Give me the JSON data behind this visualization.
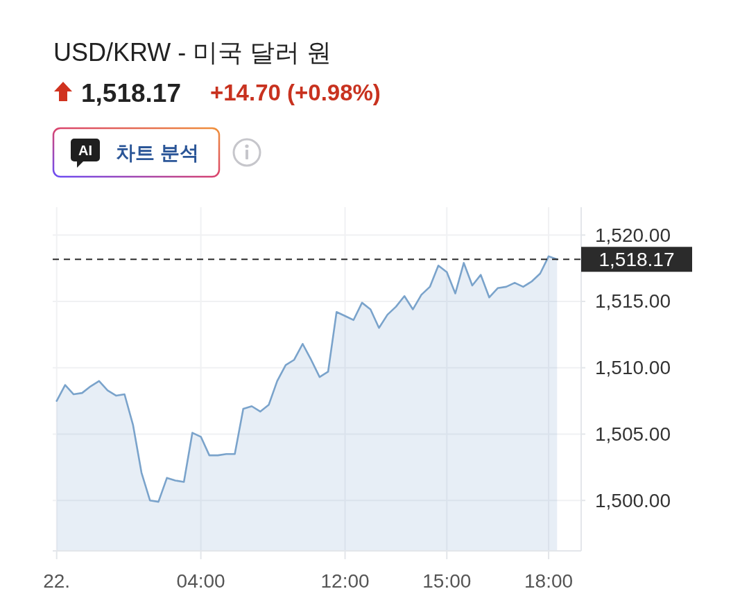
{
  "chart_data": {
    "type": "area",
    "title": "USD/KRW - 미국 달러 원",
    "subtitle": "1,518.17",
    "annotations": [
      "+14.70 (+0.98%)",
      "AI",
      "차트 분석"
    ],
    "categories": [
      "22.",
      null,
      null,
      null,
      null,
      null,
      null,
      null,
      null,
      null,
      null,
      null,
      null,
      null,
      null,
      null,
      null,
      "04:00",
      null,
      null,
      null,
      null,
      null,
      null,
      null,
      null,
      null,
      null,
      null,
      null,
      null,
      null,
      null,
      null,
      "12:00",
      null,
      null,
      null,
      null,
      null,
      null,
      null,
      null,
      null,
      null,
      null,
      "15:00",
      null,
      null,
      null,
      null,
      null,
      null,
      null,
      null,
      null,
      null,
      null,
      "18:00",
      null
    ],
    "series": [
      {
        "color": "#7aa3cb",
        "values": [
          1507.5,
          1508.7,
          1508.0,
          1508.1,
          1508.6,
          1509.0,
          1508.3,
          1507.9,
          1508.0,
          1505.7,
          1502.1,
          1500.0,
          1499.9,
          1501.7,
          1501.5,
          1501.4,
          1505.1,
          1504.8,
          1503.4,
          1503.4,
          1503.5,
          1503.5,
          1506.9,
          1507.1,
          1506.7,
          1507.2,
          1509.0,
          1510.2,
          1510.6,
          1511.8,
          1510.6,
          1509.3,
          1509.7,
          1514.2,
          1513.9,
          1513.6,
          1514.9,
          1514.4,
          1513.0,
          1514.0,
          1514.6,
          1515.4,
          1514.4,
          1515.5,
          1516.1,
          1517.7,
          1517.2,
          1515.6,
          1517.9,
          1516.2,
          1517.0,
          1515.3,
          1516.0,
          1516.1,
          1516.4,
          1516.1,
          1516.5,
          1517.1,
          1518.4,
          1518.17
        ]
      }
    ],
    "ylim": [
      1496.2,
      1522.1
    ],
    "yticks": [
      {
        "value": 1500,
        "label": "1,500.00"
      },
      {
        "value": 1505,
        "label": "1,505.00"
      },
      {
        "value": 1510,
        "label": "1,510.00"
      },
      {
        "value": 1515,
        "label": "1,515.00"
      },
      {
        "value": 1520,
        "label": "1,520.00"
      }
    ],
    "grid": true,
    "ref_lines": [
      {
        "axis": "y",
        "value": 1518.17,
        "label": "1,518.17",
        "color": "#2b2b2b",
        "line_style": "dashed"
      }
    ]
  }
}
